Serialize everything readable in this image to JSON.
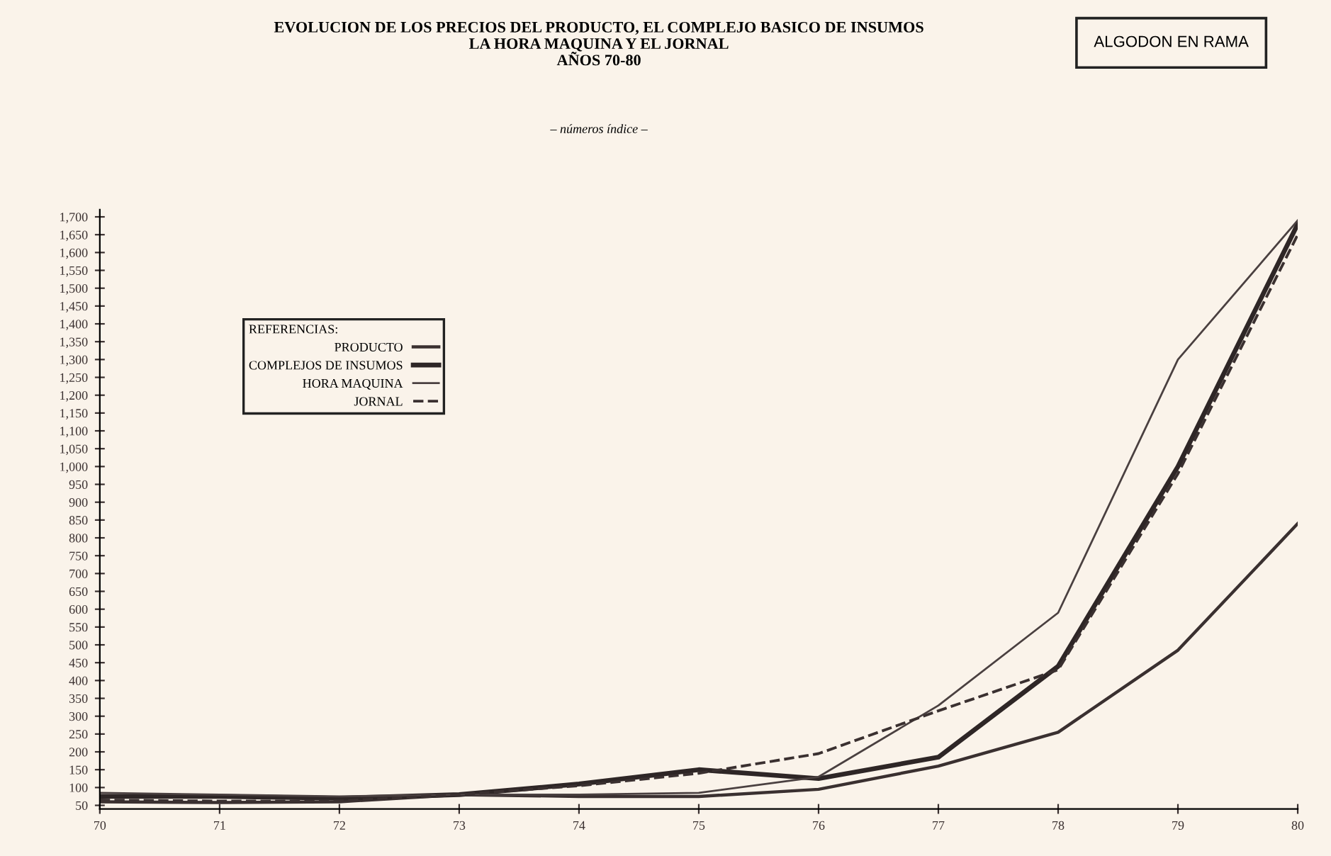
{
  "chart_data": {
    "type": "line",
    "title": "EVOLUCION DE LOS PRECIOS DEL PRODUCTO, EL COMPLEJO BASICO DE INSUMOS\nLA HORA MAQUINA Y EL JORNAL\nAÑOS 70-80",
    "subtitle": "– números índice –",
    "legend_title": "REFERENCIAS:",
    "annotations": [
      "ALGODON EN RAMA"
    ],
    "x": [
      70,
      71,
      72,
      73,
      74,
      75,
      76,
      77,
      78,
      79,
      80
    ],
    "series": [
      {
        "name": "PRODUCTO",
        "color": "#3a3030",
        "line_style": "solid",
        "values": [
          60,
          58,
          60,
          80,
          75,
          75,
          95,
          160,
          255,
          485,
          840
        ]
      },
      {
        "name": "COMPLEJOS DE INSUMOS",
        "color": "#2e2626",
        "line_style": "solid",
        "values": [
          75,
          75,
          70,
          80,
          110,
          150,
          125,
          185,
          440,
          1000,
          1680
        ]
      },
      {
        "name": "HORA MAQUINA",
        "color": "#4a4040",
        "line_style": "solid",
        "values": [
          85,
          80,
          75,
          80,
          80,
          85,
          130,
          330,
          590,
          1300,
          1690
        ]
      },
      {
        "name": "JORNAL",
        "color": "#3a3030",
        "line_style": "dashed",
        "values": [
          65,
          62,
          62,
          80,
          105,
          140,
          195,
          315,
          430,
          980,
          1650
        ]
      }
    ],
    "xlim": [
      70,
      80
    ],
    "ylim": [
      40,
      1720
    ],
    "xticks": [
      70,
      71,
      72,
      73,
      74,
      75,
      76,
      77,
      78,
      79,
      80
    ],
    "yticks": [
      50,
      100,
      150,
      200,
      250,
      300,
      350,
      400,
      450,
      500,
      550,
      600,
      650,
      700,
      750,
      800,
      850,
      900,
      950,
      {
        "value": 1000,
        "label": "1,000"
      },
      {
        "value": 1050,
        "label": "1,050"
      },
      {
        "value": 1100,
        "label": "1,100"
      },
      {
        "value": 1150,
        "label": "1,150"
      },
      {
        "value": 1200,
        "label": "1,200"
      },
      {
        "value": 1250,
        "label": "1,250"
      },
      {
        "value": 1300,
        "label": "1,300"
      },
      {
        "value": 1350,
        "label": "1,350"
      },
      {
        "value": 1400,
        "label": "1,400"
      },
      {
        "value": 1450,
        "label": "1,450"
      },
      {
        "value": 1500,
        "label": "1,500"
      },
      {
        "value": 1550,
        "label": "1,550"
      },
      {
        "value": 1600,
        "label": "1,600"
      },
      {
        "value": 1650,
        "label": "1,650"
      },
      {
        "value": 1700,
        "label": "1,700"
      }
    ],
    "legend": "top left",
    "grid": false,
    "marker": "none"
  }
}
